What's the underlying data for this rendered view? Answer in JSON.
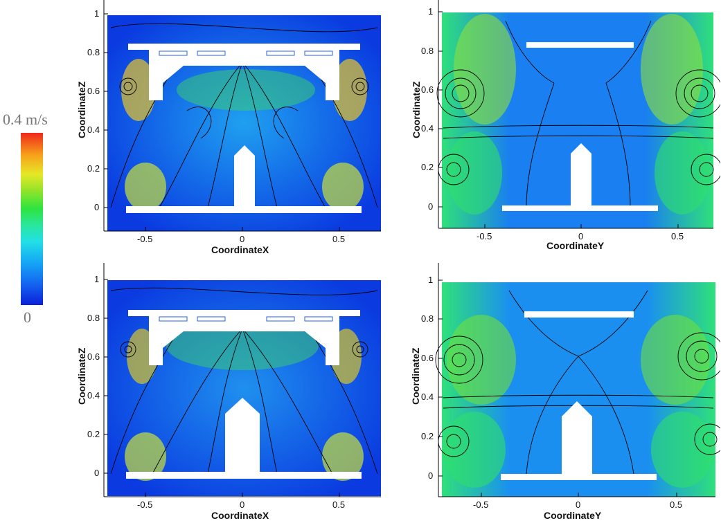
{
  "colorbar": {
    "max_label": "0.4 m/s",
    "min_label": "0",
    "colors": [
      "#0a1fd8",
      "#15a8f5",
      "#2ee33f",
      "#e6e826",
      "#f0281a"
    ]
  },
  "panels": [
    {
      "id": "top-left",
      "xlabel": "CoordinateX",
      "ylabel": "CoordinateZ",
      "xticks": [
        "-0.5",
        "0",
        "0.5"
      ],
      "yticks": [
        "0",
        "0.2",
        "0.4",
        "0.6",
        "0.8",
        "1"
      ]
    },
    {
      "id": "top-right",
      "xlabel": "CoordinateY",
      "ylabel": "CoordinateZ",
      "xticks": [
        "-0.5",
        "0",
        "0.5"
      ],
      "yticks": [
        "0",
        "0.2",
        "0.4",
        "0.6",
        "0.8",
        "1"
      ]
    },
    {
      "id": "bottom-left",
      "xlabel": "CoordinateX",
      "ylabel": "CoordinateZ",
      "xticks": [
        "-0.5",
        "0",
        "0.5"
      ],
      "yticks": [
        "0",
        "0.2",
        "0.4",
        "0.6",
        "0.8",
        "1"
      ]
    },
    {
      "id": "bottom-right",
      "xlabel": "CoordinateY",
      "ylabel": "CoordinateZ",
      "xticks": [
        "-0.5",
        "0",
        "0.5"
      ],
      "yticks": [
        "0",
        "0.2",
        "0.4",
        "0.6",
        "0.8",
        "1"
      ]
    }
  ]
}
